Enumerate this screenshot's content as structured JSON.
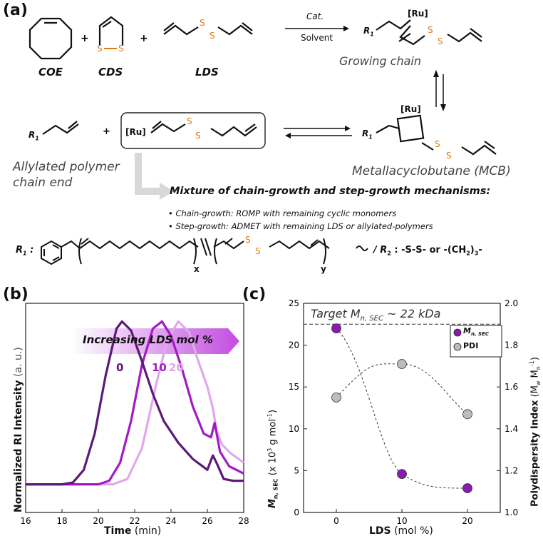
{
  "panel_a": {
    "label": "(a)",
    "monomers": [
      "COE",
      "CDS",
      "LDS"
    ],
    "arrow_top": "Cat.",
    "arrow_bottom": "Solvent",
    "growing_chain": "Growing chain",
    "ru": "[Ru]",
    "r1": "R",
    "r1_sub": "1",
    "allylated_line1": "Allylated polymer",
    "allylated_line2": "chain end",
    "mcb": "Metallacyclobutane (MCB)",
    "mixture_title": "Mixture of chain-growth and step-growth mechanisms:",
    "bullets": [
      "• Chain-growth: ROMP with remaining cyclic  monomers",
      "• Step-growth: ADMET with remaining LDS or allylated-polymers"
    ],
    "r1_def": "R",
    "x_label": "x",
    "y_label": "y",
    "r2_def": "/ R",
    "r2_values": ": -S-S- or -(CH",
    "r2_tail": ")",
    "r2_end": "-",
    "sub_2": "2",
    "sub_3": "3",
    "colors": {
      "sulfur": "#e07a10",
      "structure": "#111111"
    }
  },
  "panel_b": {
    "label": "(b)",
    "banner": "Increasing LDS mol %",
    "curve_labels": [
      "0",
      "10",
      "20"
    ],
    "xlabel": "Time",
    "xunit": "(min)",
    "ylabel": "Normalized RI Intensity",
    "yunit": "(a. u.)",
    "xticks": [
      "16",
      "18",
      "20",
      "22",
      "24",
      "26",
      "28"
    ]
  },
  "panel_c": {
    "label": "(c)",
    "target_text": "Target M",
    "target_sub": "n, SEC",
    "target_tail": " ~ 22 kDa",
    "legend_mn": "M",
    "legend_mn_sub": "n, SEC",
    "legend_pdi": "PDI",
    "xlabel": "LDS",
    "xunit": "(mol %)",
    "ylabel_left": "M",
    "ylabel_left_sub": "n, SEC",
    "ylabel_left_unit": " (x 10",
    "ylabel_left_exp": "3",
    "ylabel_left_tail": " g mol",
    "ylabel_left_exp2": "-1",
    "ylabel_left_close": ")",
    "ylabel_right": "Polydispersity Index",
    "ylabel_right_unit": " (M",
    "ylabel_right_w": "w",
    "ylabel_right_mid": " M",
    "ylabel_right_n": "n",
    "ylabel_right_exp": "-1",
    "ylabel_right_close": ")",
    "left_ticks": [
      "0",
      "5",
      "10",
      "15",
      "20",
      "25"
    ],
    "right_ticks": [
      "1.0",
      "1.2",
      "1.4",
      "1.6",
      "1.8",
      "2.0"
    ],
    "xticks": [
      "0",
      "10",
      "20"
    ]
  },
  "chart_data": [
    {
      "type": "line",
      "panel": "b",
      "xlabel": "Time (min)",
      "ylabel": "Normalized RI Intensity (a. u.)",
      "xlim": [
        16,
        28
      ],
      "ylim": [
        0,
        1.1
      ],
      "series": [
        {
          "name": "0",
          "color": "#5c1a78",
          "x": [
            16,
            18,
            18.6,
            19.2,
            19.8,
            20.4,
            21.0,
            21.3,
            21.8,
            22.4,
            23.0,
            23.6,
            24.4,
            25.2,
            26.0,
            26.3,
            26.5,
            26.9,
            27.4,
            28
          ],
          "y": [
            0.1,
            0.1,
            0.11,
            0.18,
            0.38,
            0.7,
            0.96,
            1.0,
            0.95,
            0.78,
            0.6,
            0.45,
            0.33,
            0.24,
            0.18,
            0.26,
            0.22,
            0.13,
            0.12,
            0.12
          ]
        },
        {
          "name": "10",
          "color": "#a11bc4",
          "x": [
            16,
            20.0,
            20.6,
            21.2,
            21.8,
            22.4,
            23.0,
            23.5,
            24.0,
            24.6,
            25.2,
            25.8,
            26.2,
            26.4,
            26.7,
            27.2,
            28
          ],
          "y": [
            0.1,
            0.1,
            0.12,
            0.22,
            0.45,
            0.76,
            0.96,
            1.0,
            0.92,
            0.74,
            0.53,
            0.38,
            0.36,
            0.44,
            0.28,
            0.2,
            0.16
          ]
        },
        {
          "name": "20",
          "color": "#e0a8ec",
          "x": [
            16,
            20.8,
            21.6,
            22.4,
            23.2,
            23.8,
            24.4,
            25.0,
            25.5,
            26.0,
            26.3,
            26.5,
            26.8,
            27.3,
            28
          ],
          "y": [
            0.1,
            0.1,
            0.13,
            0.3,
            0.66,
            0.9,
            1.0,
            0.94,
            0.78,
            0.64,
            0.52,
            0.4,
            0.32,
            0.27,
            0.22
          ]
        }
      ]
    },
    {
      "type": "scatter",
      "panel": "c",
      "xlabel": "LDS (mol %)",
      "categories": [
        "0",
        "10",
        "20"
      ],
      "x": [
        0,
        10,
        20
      ],
      "xlim": [
        -5,
        25
      ],
      "ylim_left": [
        0,
        25
      ],
      "ylim_right": [
        1.0,
        2.0
      ],
      "target_line": 22.5,
      "series": [
        {
          "name": "Mn, SEC",
          "axis": "left",
          "color": "#8a1bb0",
          "values": [
            22.0,
            4.6,
            2.9
          ]
        },
        {
          "name": "PDI",
          "axis": "right",
          "color": "#bdbdbd",
          "values": [
            1.55,
            1.71,
            1.47
          ]
        }
      ]
    }
  ]
}
